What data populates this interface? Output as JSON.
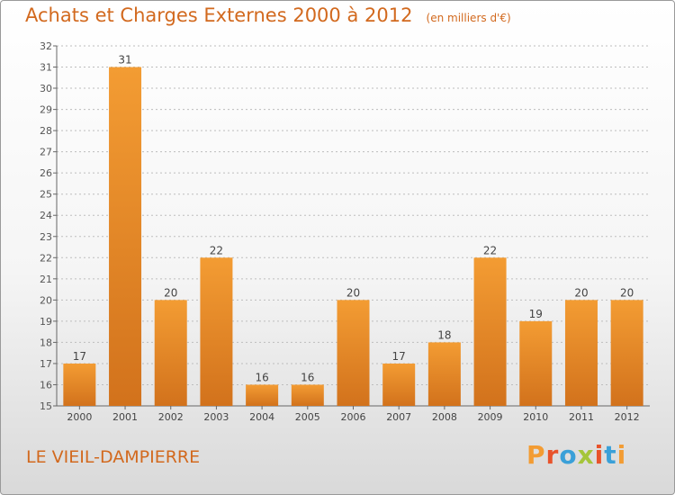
{
  "chart_data": {
    "type": "bar",
    "title": "Achats et Charges Externes 2000 à 2012",
    "subtitle": "(en milliers d'€)",
    "categories": [
      "2000",
      "2001",
      "2002",
      "2003",
      "2004",
      "2005",
      "2006",
      "2007",
      "2008",
      "2009",
      "2010",
      "2011",
      "2012"
    ],
    "values": [
      17,
      31,
      20,
      22,
      16,
      16,
      20,
      17,
      18,
      22,
      19,
      20,
      20
    ],
    "ylim": [
      15,
      32
    ],
    "yticks": [
      15,
      16,
      17,
      18,
      19,
      20,
      21,
      22,
      23,
      24,
      25,
      26,
      27,
      28,
      29,
      30,
      31,
      32
    ],
    "xlabel": "",
    "ylabel": "",
    "grid": true,
    "bar_color": "#f39c33",
    "bar_color_dark": "#d2721c"
  },
  "location": "LE VIEIL-DAMPIERRE",
  "logo": {
    "text": "Proxiti",
    "letter_colors": [
      "#f39c33",
      "#e8532b",
      "#3aa0d8",
      "#a5c53a",
      "#e8532b",
      "#3aa0d8",
      "#f39c33"
    ]
  },
  "text_color": "#d2691e"
}
